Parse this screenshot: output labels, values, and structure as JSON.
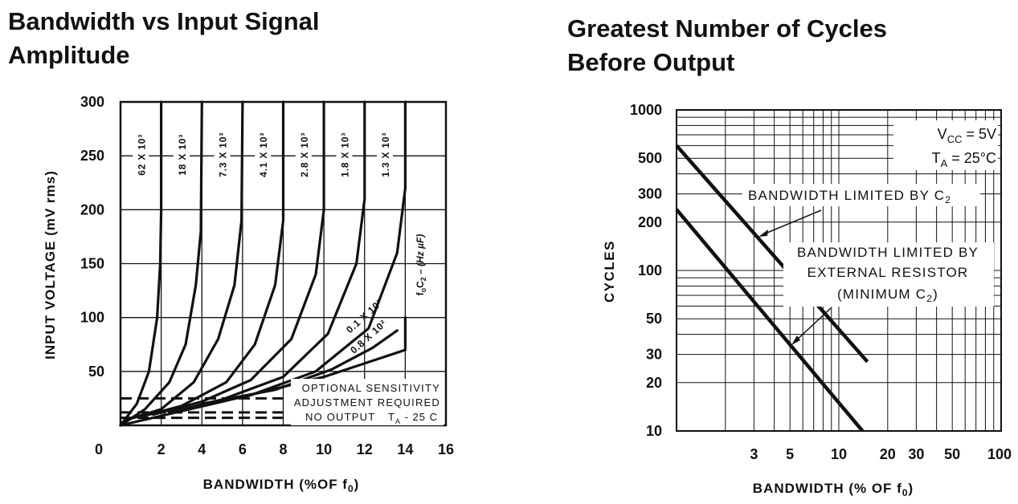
{
  "charts": [
    {
      "title_lines": [
        "Bandwidth vs Input Signal",
        "Amplitude"
      ],
      "xlabel": "BANDWIDTH (%OF f",
      "xlabel_sub": "0",
      "xlabel_end": ")",
      "ylabel": "INPUT VOLTAGE (mV rms)",
      "annotations": {
        "foc2_main": "f",
        "foc2_sub1": "o",
        "foc2_mid": "C",
        "foc2_sub2": "2",
        "foc2_end": " – (Hz µF)",
        "optional_1": "OPTIONAL SENSITIVITY",
        "optional_2": "ADJUSTMENT REQUIRED",
        "no_output": "NO OUTPUT",
        "ta_main": "T",
        "ta_sub": "A",
        "ta_end": " - 25 C"
      }
    },
    {
      "title_lines": [
        "Greatest Number of Cycles",
        "Before Output"
      ],
      "xlabel": "BANDWIDTH (% OF f",
      "xlabel_sub": "0",
      "xlabel_end": ")",
      "ylabel": "CYCLES",
      "annotations": {
        "vcc_main": "V",
        "vcc_sub": "CC",
        "vcc_end": " = 5V",
        "ta_main": "T",
        "ta_sub": "A",
        "ta_end": " = 25°C",
        "limited_c2_main": "BANDWIDTH LIMITED BY C",
        "limited_c2_sub": "2",
        "ext_1": "BANDWIDTH LIMITED BY",
        "ext_2": "EXTERNAL RESISTOR",
        "ext_3_main": "(MINIMUM C",
        "ext_3_sub": "2",
        "ext_3_end": ")"
      }
    }
  ],
  "chart_data": [
    {
      "type": "line",
      "x_range": [
        0,
        16
      ],
      "y_range": [
        0,
        300
      ],
      "x_ticks": [
        0,
        2,
        4,
        6,
        8,
        10,
        12,
        14,
        16
      ],
      "y_ticks": [
        50,
        100,
        150,
        200,
        250,
        300
      ],
      "grid": true,
      "series": [
        {
          "name": "62 X 10³",
          "points": [
            [
              0,
              0
            ],
            [
              0.8,
              20
            ],
            [
              1.4,
              50
            ],
            [
              1.8,
              100
            ],
            [
              1.95,
              150
            ],
            [
              2,
              200
            ],
            [
              2,
              300
            ]
          ]
        },
        {
          "name": "18 X 10³",
          "points": [
            [
              0,
              0
            ],
            [
              1.2,
              15
            ],
            [
              2.4,
              40
            ],
            [
              3.2,
              75
            ],
            [
              3.7,
              130
            ],
            [
              3.95,
              180
            ],
            [
              4,
              300
            ]
          ]
        },
        {
          "name": "7.3 X 10³",
          "points": [
            [
              0.3,
              5
            ],
            [
              2,
              15
            ],
            [
              3.6,
              40
            ],
            [
              4.8,
              80
            ],
            [
              5.6,
              130
            ],
            [
              5.95,
              190
            ],
            [
              6,
              300
            ]
          ]
        },
        {
          "name": "4.1 X 10³",
          "points": [
            [
              1,
              8
            ],
            [
              3,
              18
            ],
            [
              5.2,
              40
            ],
            [
              6.6,
              75
            ],
            [
              7.6,
              130
            ],
            [
              8,
              190
            ],
            [
              8,
              300
            ]
          ]
        },
        {
          "name": "2.8 X 10³",
          "points": [
            [
              1.6,
              10
            ],
            [
              4,
              22
            ],
            [
              6.4,
              42
            ],
            [
              8.4,
              80
            ],
            [
              9.6,
              140
            ],
            [
              10,
              200
            ],
            [
              10,
              300
            ]
          ]
        },
        {
          "name": "1.8 X 10³",
          "points": [
            [
              2.4,
              12
            ],
            [
              5,
              24
            ],
            [
              8,
              45
            ],
            [
              10.2,
              85
            ],
            [
              11.6,
              150
            ],
            [
              12,
              210
            ],
            [
              12,
              300
            ]
          ]
        },
        {
          "name": "1.3 X 10³",
          "points": [
            [
              3.2,
              15
            ],
            [
              6.4,
              28
            ],
            [
              9.6,
              50
            ],
            [
              12.2,
              90
            ],
            [
              13.6,
              160
            ],
            [
              14,
              220
            ],
            [
              14,
              300
            ]
          ]
        },
        {
          "name": "0.1 X 10³",
          "points": [
            [
              4,
              20
            ],
            [
              7.6,
              33
            ],
            [
              10.4,
              52
            ],
            [
              12.4,
              72
            ],
            [
              13.6,
              88
            ]
          ]
        },
        {
          "name": "0.8 X 10²",
          "points": [
            [
              0,
              0
            ],
            [
              5,
              22
            ],
            [
              10,
              45
            ],
            [
              14,
              70
            ],
            [
              14,
              100
            ]
          ]
        }
      ],
      "dashed_levels": [
        {
          "x_range": [
            0,
            8
          ],
          "y": 25
        },
        {
          "x_range": [
            0,
            8
          ],
          "y": 12
        },
        {
          "x_range": [
            0,
            8
          ],
          "y": 7
        }
      ],
      "rotated_labels": [
        "62 X 10³",
        "18 X 10³",
        "7.3 X 10³",
        "4.1 X 10³",
        "2.8 X 10³",
        "1.8 X 10³",
        "1.3 X 10³"
      ],
      "inline_labels": [
        "0.1 X 10³",
        "0.8 X 10²"
      ]
    },
    {
      "type": "line",
      "x_scale": "log",
      "y_scale": "log",
      "x_range": [
        1,
        100
      ],
      "y_range": [
        10,
        1000
      ],
      "x_ticks": [
        3,
        5,
        10,
        20,
        30,
        50,
        100
      ],
      "y_ticks": [
        10,
        20,
        30,
        50,
        100,
        200,
        300,
        500,
        1000
      ],
      "grid": true,
      "series": [
        {
          "name": "BANDWIDTH LIMITED BY C2",
          "points": [
            [
              1,
              600
            ],
            [
              15,
              27
            ]
          ]
        },
        {
          "name": "BANDWIDTH LIMITED BY EXTERNAL RESISTOR (MINIMUM C2)",
          "points": [
            [
              1,
              240
            ],
            [
              14,
              10
            ]
          ]
        }
      ]
    }
  ]
}
